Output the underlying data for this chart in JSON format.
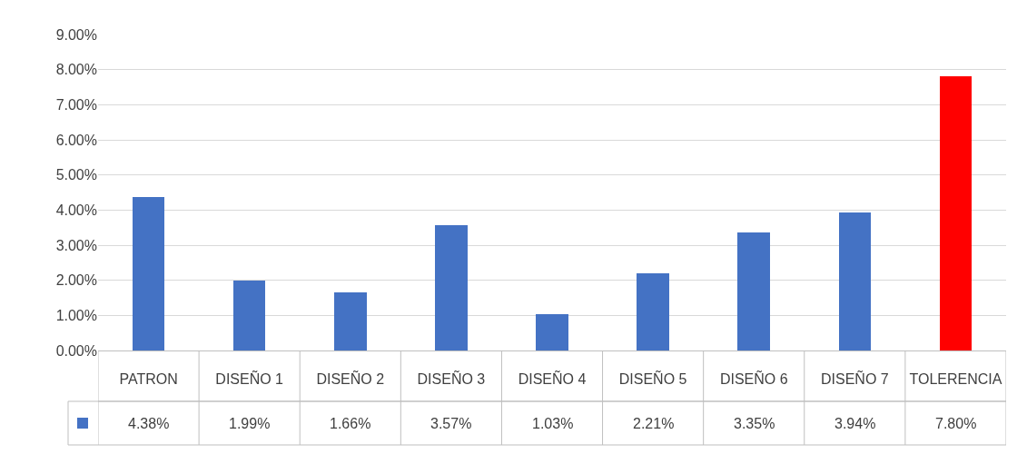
{
  "chart_data": {
    "type": "bar",
    "categories": [
      "PATRON",
      "DISEÑO 1",
      "DISEÑO 2",
      "DISEÑO 3",
      "DISEÑO 4",
      "DISEÑO 5",
      "DISEÑO 6",
      "DISEÑO 7",
      "TOLERENCIA"
    ],
    "values": [
      4.38,
      1.99,
      1.66,
      3.57,
      1.03,
      2.21,
      3.35,
      3.94,
      7.8
    ],
    "value_labels": [
      "4.38%",
      "1.99%",
      "1.66%",
      "3.57%",
      "1.03%",
      "2.21%",
      "3.35%",
      "3.94%",
      "7.80%"
    ],
    "colors": [
      "#4472c4",
      "#4472c4",
      "#4472c4",
      "#4472c4",
      "#4472c4",
      "#4472c4",
      "#4472c4",
      "#4472c4",
      "#ff0000"
    ],
    "ylim": [
      0,
      9
    ],
    "yticks": [
      {
        "value": 0,
        "label": "0.00%"
      },
      {
        "value": 1,
        "label": "1.00%"
      },
      {
        "value": 2,
        "label": "2.00%"
      },
      {
        "value": 3,
        "label": "3.00%"
      },
      {
        "value": 4,
        "label": "4.00%"
      },
      {
        "value": 5,
        "label": "5.00%"
      },
      {
        "value": 6,
        "label": "6.00%"
      },
      {
        "value": 7,
        "label": "7.00%"
      },
      {
        "value": 8,
        "label": "8.00%"
      },
      {
        "value": 9,
        "label": "9.00%"
      }
    ],
    "grid": "y"
  }
}
